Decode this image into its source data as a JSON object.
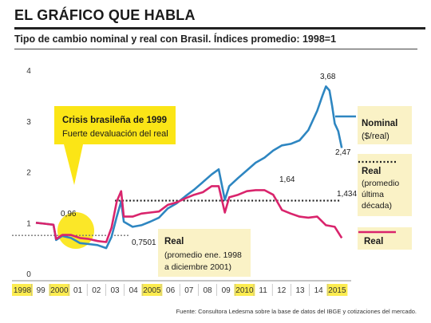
{
  "header": {
    "title": "EL GRÁFICO QUE HABLA"
  },
  "subtitle": "Tipo de cambio nominal y real con Brasil. Índices promedio: 1998=1",
  "source": "Fuente: Consultora Ledesma sobre la base de datos del IBGE y cotizaciones del mercado.",
  "colors": {
    "nominal": "#2E86C1",
    "real": "#D9246C",
    "callout_yellow": "#FBE516",
    "box_beige": "#FAF2C6",
    "gray_axis": "#777777",
    "dotted": "#222222"
  },
  "chart_data": {
    "type": "line",
    "title": "Tipo de cambio nominal y real con Brasil. Índices promedio: 1998=1",
    "xlabel": "",
    "ylabel": "",
    "xlim": [
      1998,
      2015.8
    ],
    "ylim": [
      0,
      4
    ],
    "grid": false,
    "x_ticks": [
      "1998",
      "99",
      "2000",
      "01",
      "02",
      "03",
      "04",
      "2005",
      "06",
      "07",
      "08",
      "09",
      "2010",
      "11",
      "12",
      "13",
      "14",
      "2015"
    ],
    "highlighted_ticks": [
      "1998",
      "2000",
      "2005",
      "2010",
      "2015"
    ],
    "y_ticks": [
      "0",
      "1",
      "2",
      "3",
      "4"
    ],
    "series": [
      {
        "name": "Nominal",
        "unit": "($/real)",
        "x": [
          1998,
          1998.5,
          1999.0,
          1999.15,
          1999.5,
          2000.0,
          2000.5,
          2001.0,
          2001.5,
          2002.0,
          2002.3,
          2002.6,
          2002.85,
          2003.0,
          2003.5,
          2004.0,
          2004.5,
          2005.0,
          2005.5,
          2006.0,
          2006.5,
          2007.0,
          2007.5,
          2008.0,
          2008.4,
          2008.75,
          2009.0,
          2009.5,
          2010.0,
          2010.5,
          2011.0,
          2011.5,
          2012.0,
          2012.5,
          2013.0,
          2013.5,
          2014.0,
          2014.3,
          2014.5,
          2014.7,
          2014.85,
          2015.0,
          2015.2,
          2015.4
        ],
        "values": [
          1.0,
          0.98,
          0.96,
          0.66,
          0.74,
          0.7,
          0.6,
          0.58,
          0.56,
          0.5,
          0.72,
          1.12,
          1.42,
          1.02,
          0.92,
          0.95,
          1.02,
          1.1,
          1.28,
          1.38,
          1.52,
          1.65,
          1.8,
          1.95,
          2.05,
          1.45,
          1.72,
          1.88,
          2.03,
          2.18,
          2.28,
          2.42,
          2.52,
          2.55,
          2.62,
          2.82,
          3.2,
          3.5,
          3.68,
          3.6,
          3.3,
          2.95,
          2.8,
          2.47
        ]
      },
      {
        "name": "Real",
        "x": [
          1998,
          1998.5,
          1999.0,
          1999.15,
          1999.5,
          2000.0,
          2000.5,
          2001.0,
          2001.5,
          2002.0,
          2002.3,
          2002.6,
          2002.85,
          2003.0,
          2003.5,
          2004.0,
          2004.5,
          2005.0,
          2005.5,
          2006.0,
          2006.5,
          2007.0,
          2007.5,
          2008.0,
          2008.4,
          2008.75,
          2009.0,
          2009.5,
          2010.0,
          2010.5,
          2011.0,
          2011.5,
          2012.0,
          2012.5,
          2013.0,
          2013.5,
          2014.0,
          2014.5,
          2015.0,
          2015.4
        ],
        "values": [
          1.0,
          0.98,
          0.96,
          0.68,
          0.76,
          0.76,
          0.7,
          0.68,
          0.64,
          0.62,
          0.9,
          1.42,
          1.62,
          1.12,
          1.12,
          1.18,
          1.2,
          1.22,
          1.35,
          1.4,
          1.48,
          1.55,
          1.6,
          1.72,
          1.72,
          1.2,
          1.5,
          1.55,
          1.62,
          1.64,
          1.64,
          1.55,
          1.25,
          1.18,
          1.12,
          1.1,
          1.12,
          0.95,
          0.92,
          0.7
        ]
      }
    ],
    "reference_lines": [
      {
        "name": "Real (promedio ene. 1998 a diciembre 2001)",
        "value": 0.7501,
        "x_start": 1998,
        "x_end": 2003.3,
        "style": "dotted",
        "color": "gray"
      },
      {
        "name": "Real (promedio última década)",
        "value": 1.434,
        "x_start": 2002.5,
        "x_end": 2015.3,
        "style": "dotted",
        "color": "black"
      }
    ],
    "value_labels": [
      "0,96",
      "0,7501",
      "1,64",
      "1,434",
      "3,68",
      "2,47"
    ],
    "annotations": [
      {
        "title": "Crisis brasileña de 1999",
        "text": "Fuerte devaluación del real"
      },
      {
        "title": "Real",
        "text": "(promedio ene. 1998 a diciembre 2001)"
      }
    ],
    "legend": {
      "placement": "right",
      "entries": [
        {
          "label": "Nominal",
          "sub": "($/real)",
          "style": "solid",
          "color": "#2E86C1"
        },
        {
          "label": "Real",
          "sub": "(promedio última década)",
          "style": "dotted",
          "color": "#222222"
        },
        {
          "label": "Real",
          "sub": "",
          "style": "solid",
          "color": "#D9246C"
        }
      ]
    }
  },
  "labels": {
    "crisis_title": "Crisis brasileña de 1999",
    "crisis_text": "Fuerte devaluación del real",
    "real_avg_title": "Real",
    "real_avg_line1": "(promedio ene. 1998",
    "real_avg_line2": "a diciembre 2001)",
    "val_096": "0,96",
    "val_07501": "0,7501",
    "val_164": "1,64",
    "val_1434": "1,434",
    "val_368": "3,68",
    "val_247": "2,47",
    "legend_nominal": "Nominal",
    "legend_nominal_sub": "($/real)",
    "legend_real_dec": "Real",
    "legend_real_dec_l1": "(promedio",
    "legend_real_dec_l2": "última",
    "legend_real_dec_l3": "década)",
    "legend_real": "Real"
  }
}
